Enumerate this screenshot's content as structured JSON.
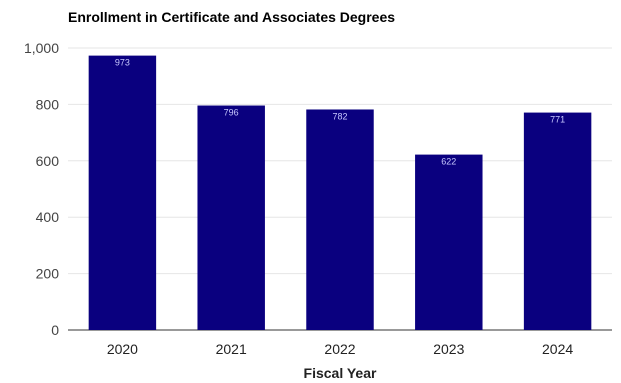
{
  "chart_data": {
    "type": "bar",
    "title": "Enrollment in Certificate and Associates Degrees",
    "xlabel": "Fiscal Year",
    "ylabel": "",
    "categories": [
      "2020",
      "2021",
      "2022",
      "2023",
      "2024"
    ],
    "values": [
      973,
      796,
      782,
      622,
      771
    ],
    "data_labels": [
      "973",
      "796",
      "782",
      "622",
      "771"
    ],
    "ylim": [
      0,
      1000
    ],
    "yticks": [
      0,
      200,
      400,
      600,
      800,
      1000
    ],
    "ytick_labels": [
      "0",
      "200",
      "400",
      "600",
      "800",
      "1,000"
    ],
    "grid": true,
    "legend": "none",
    "colors": {
      "bar": "#0a007f",
      "grid": "#e6e6e6",
      "data_label": "#c8c8ff"
    }
  }
}
